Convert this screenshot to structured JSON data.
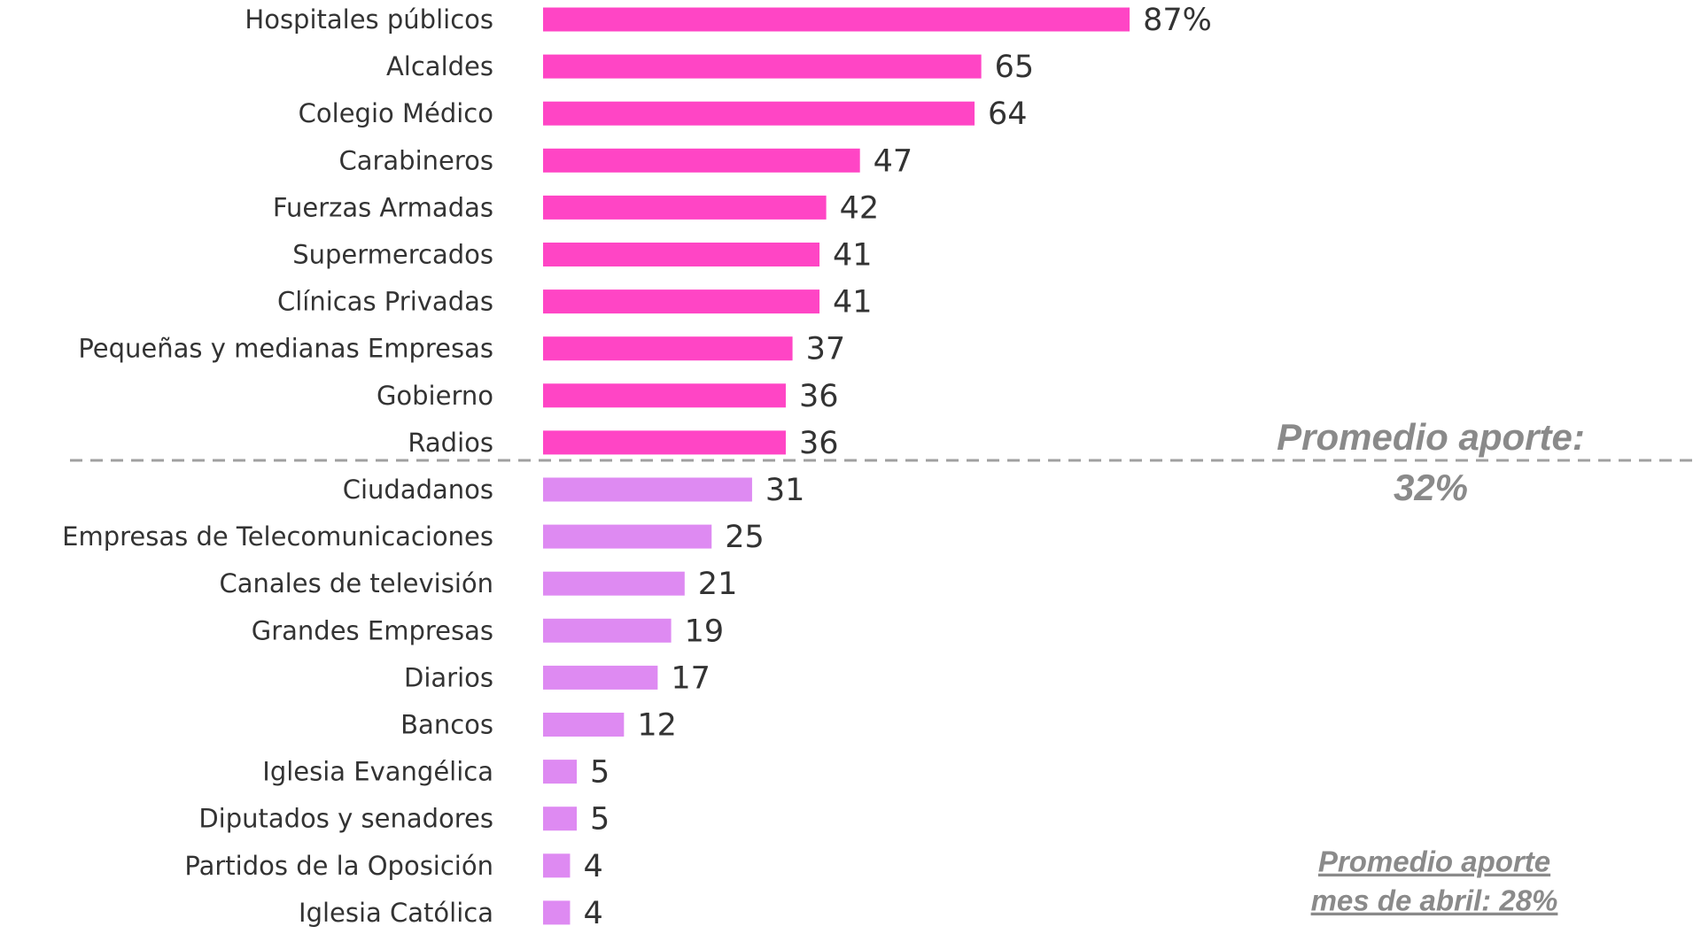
{
  "chart_data": {
    "type": "barh",
    "categories": [
      "Hospitales públicos",
      "Alcaldes",
      "Colegio Médico",
      "Carabineros",
      "Fuerzas Armadas",
      "Supermercados",
      "Clínicas Privadas",
      "Pequeñas y medianas Empresas",
      "Gobierno",
      "Radios",
      "Ciudadanos",
      "Empresas de Telecomunicaciones",
      "Canales de televisión",
      "Grandes Empresas",
      "Diarios",
      "Bancos",
      "Iglesia Evangélica",
      "Diputados y senadores",
      "Partidos de la Oposición",
      "Iglesia Católica"
    ],
    "values": [
      87,
      65,
      64,
      47,
      42,
      41,
      41,
      37,
      36,
      36,
      31,
      25,
      21,
      19,
      17,
      12,
      5,
      5,
      4,
      4
    ],
    "value_labels": [
      "87%",
      "65",
      "64",
      "47",
      "42",
      "41",
      "41",
      "37",
      "36",
      "36",
      "31",
      "25",
      "21",
      "19",
      "17",
      "12",
      "5",
      "5",
      "4",
      "4"
    ],
    "colors": [
      "#ff45c5",
      "#ff45c5",
      "#ff45c5",
      "#ff45c5",
      "#ff45c5",
      "#ff45c5",
      "#ff45c5",
      "#ff45c5",
      "#ff45c5",
      "#ff45c5",
      "#de8af2",
      "#de8af2",
      "#de8af2",
      "#de8af2",
      "#de8af2",
      "#de8af2",
      "#de8af2",
      "#de8af2",
      "#de8af2",
      "#de8af2"
    ],
    "annotations": [
      {
        "lines": [
          "Promedio aporte:",
          "32%"
        ]
      },
      {
        "lines": [
          "Promedio aporte",
          "mes de abril: 28%"
        ]
      }
    ]
  }
}
